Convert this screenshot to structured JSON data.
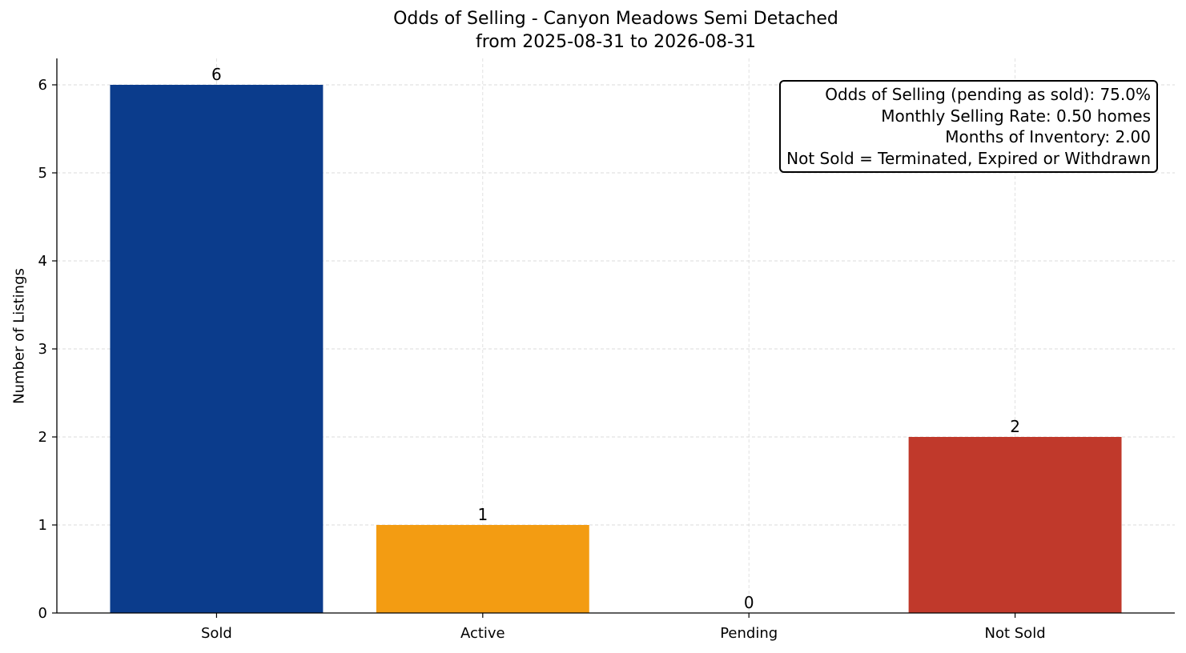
{
  "chart_data": {
    "type": "bar",
    "title": "Odds of Selling - Canyon Meadows Semi Detached",
    "subtitle": "from 2025-08-31 to 2026-08-31",
    "xlabel": "",
    "ylabel": "Number of Listings",
    "categories": [
      "Sold",
      "Active",
      "Pending",
      "Not Sold"
    ],
    "values": [
      6,
      1,
      0,
      2
    ],
    "data_labels": [
      "6",
      "1",
      "0",
      "2"
    ],
    "colors": [
      "#0b3c8c",
      "#f39c12",
      "#2e8b57",
      "#c0392b"
    ],
    "ylim": [
      0,
      6.3
    ],
    "yticks": [
      0,
      1,
      2,
      3,
      4,
      5,
      6
    ],
    "grid": true,
    "annotation": {
      "lines": [
        "Odds of Selling (pending as sold): 75.0%",
        "Monthly Selling Rate: 0.50 homes",
        "Months of Inventory: 2.00",
        "Not Sold = Terminated, Expired or Withdrawn"
      ],
      "placement": "top-right"
    }
  }
}
